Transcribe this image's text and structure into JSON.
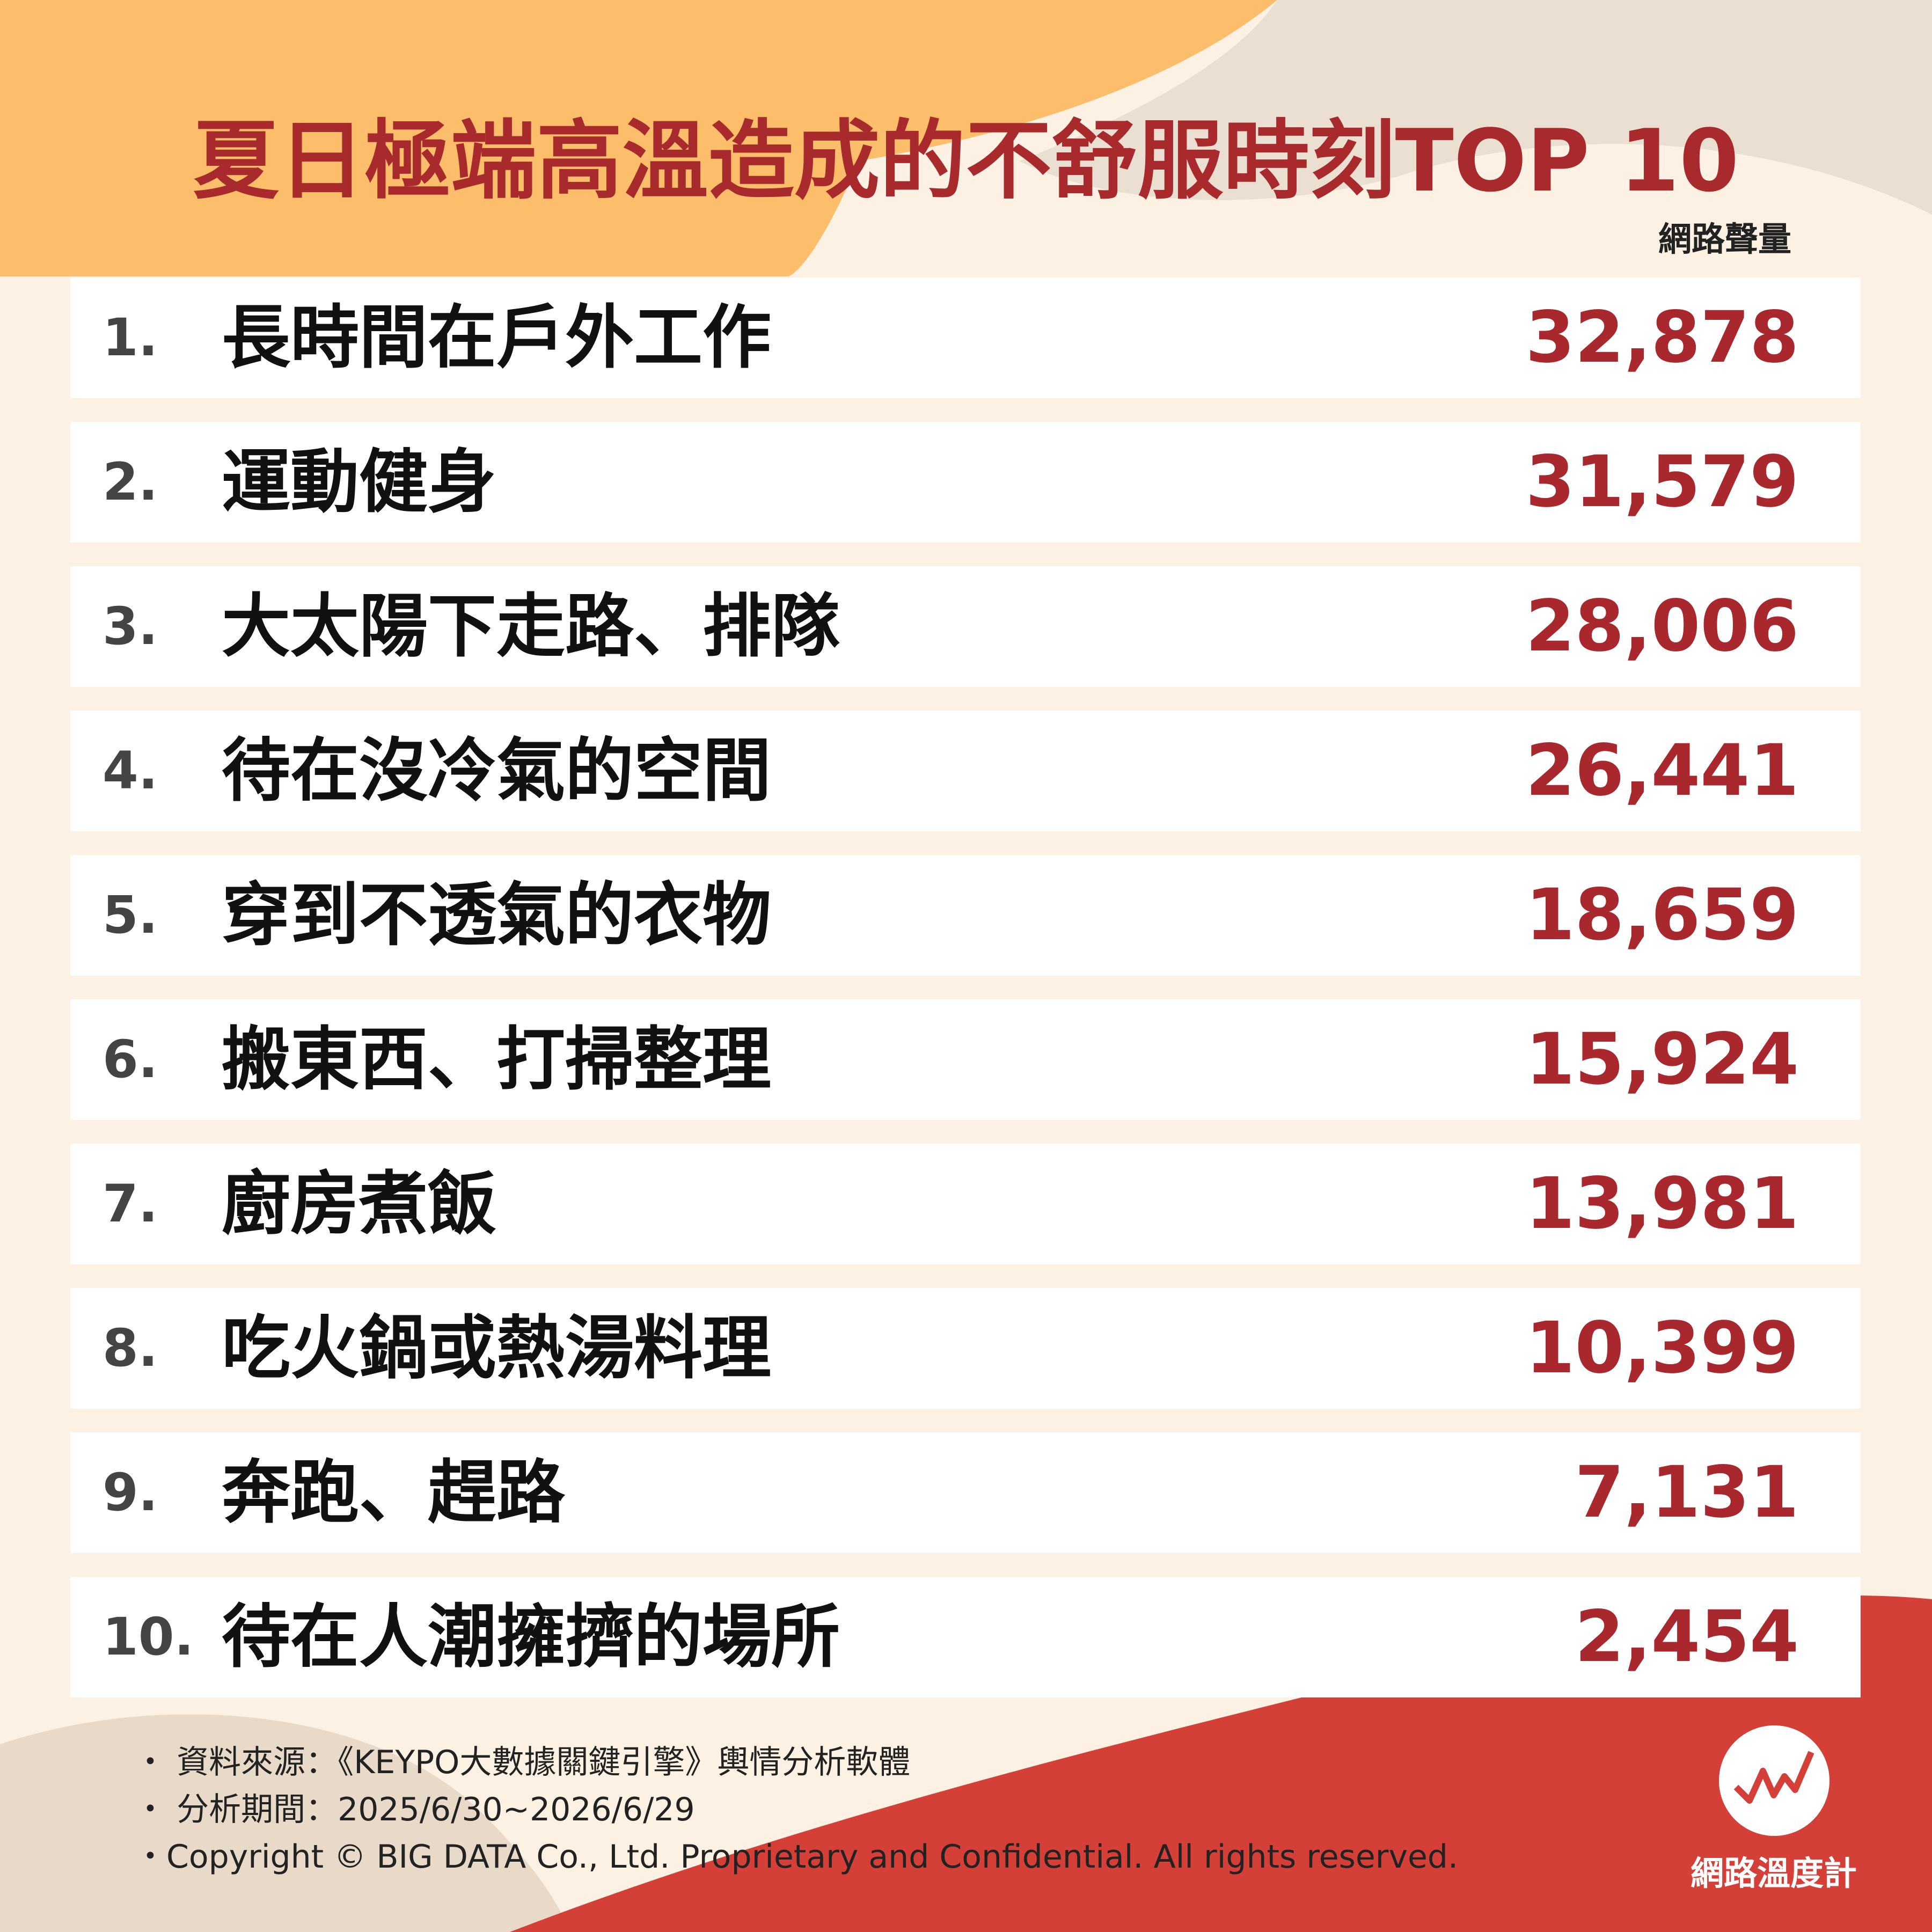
{
  "header": {
    "title": "夏日極端高溫造成的不舒服時刻TOP 10",
    "unit": "網路聲量"
  },
  "table": {
    "rows": [
      [
        "1.",
        "長時間在戶外工作",
        "32,878"
      ],
      [
        "2.",
        "運動健身",
        "31,579"
      ],
      [
        "3.",
        "大太陽下走路、排隊",
        "28,006"
      ],
      [
        "4.",
        "待在沒冷氣的空間",
        "26,441"
      ],
      [
        "5.",
        "穿到不透氣的衣物",
        "18,659"
      ],
      [
        "6.",
        "搬東西、打掃整理",
        "15,924"
      ],
      [
        "7.",
        "廚房煮飯",
        "13,981"
      ],
      [
        "8.",
        "吃火鍋或熱湯料理",
        "10,399"
      ],
      [
        "9.",
        "奔跑、趕路",
        "7,131"
      ],
      [
        "10.",
        "待在人潮擁擠的場所",
        "2,454"
      ]
    ]
  },
  "footer": {
    "notes": [
      "・ 資料來源：《KEYPO大數據關鍵引擎》輿情分析軟體",
      "・ 分析期間：2025/6/30~2026/6/29",
      "・Copyright © BIG DATA Co., Ltd. Proprietary and Confidential. All rights reserved."
    ]
  },
  "logo": {
    "text": "網路溫度計"
  }
}
